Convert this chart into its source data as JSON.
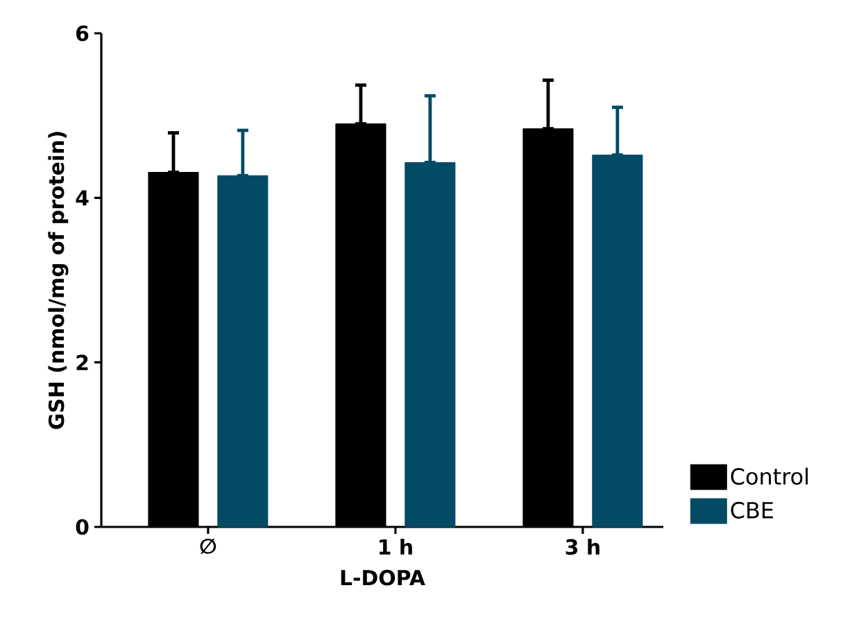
{
  "chart_data": {
    "type": "bar",
    "xlabel": "L-DOPA",
    "ylabel": "GSH (nmol/mg of protein)",
    "categories": [
      "∅",
      "1 h",
      "3 h"
    ],
    "series": [
      {
        "name": "Control",
        "color": "#000000",
        "values": [
          4.31,
          4.9,
          4.84
        ],
        "errors": [
          [
            4.31,
            4.79
          ],
          [
            4.9,
            5.37
          ],
          [
            4.84,
            5.43
          ]
        ]
      },
      {
        "name": "CBE",
        "color": "#034a65",
        "values": [
          4.27,
          4.43,
          4.52
        ],
        "errors": [
          [
            4.27,
            4.82
          ],
          [
            4.43,
            5.24
          ],
          [
            4.52,
            5.1
          ]
        ]
      }
    ],
    "ylim": [
      0,
      6
    ],
    "yticks": [
      0,
      2,
      4,
      6
    ],
    "grid": false,
    "legend": "right"
  }
}
